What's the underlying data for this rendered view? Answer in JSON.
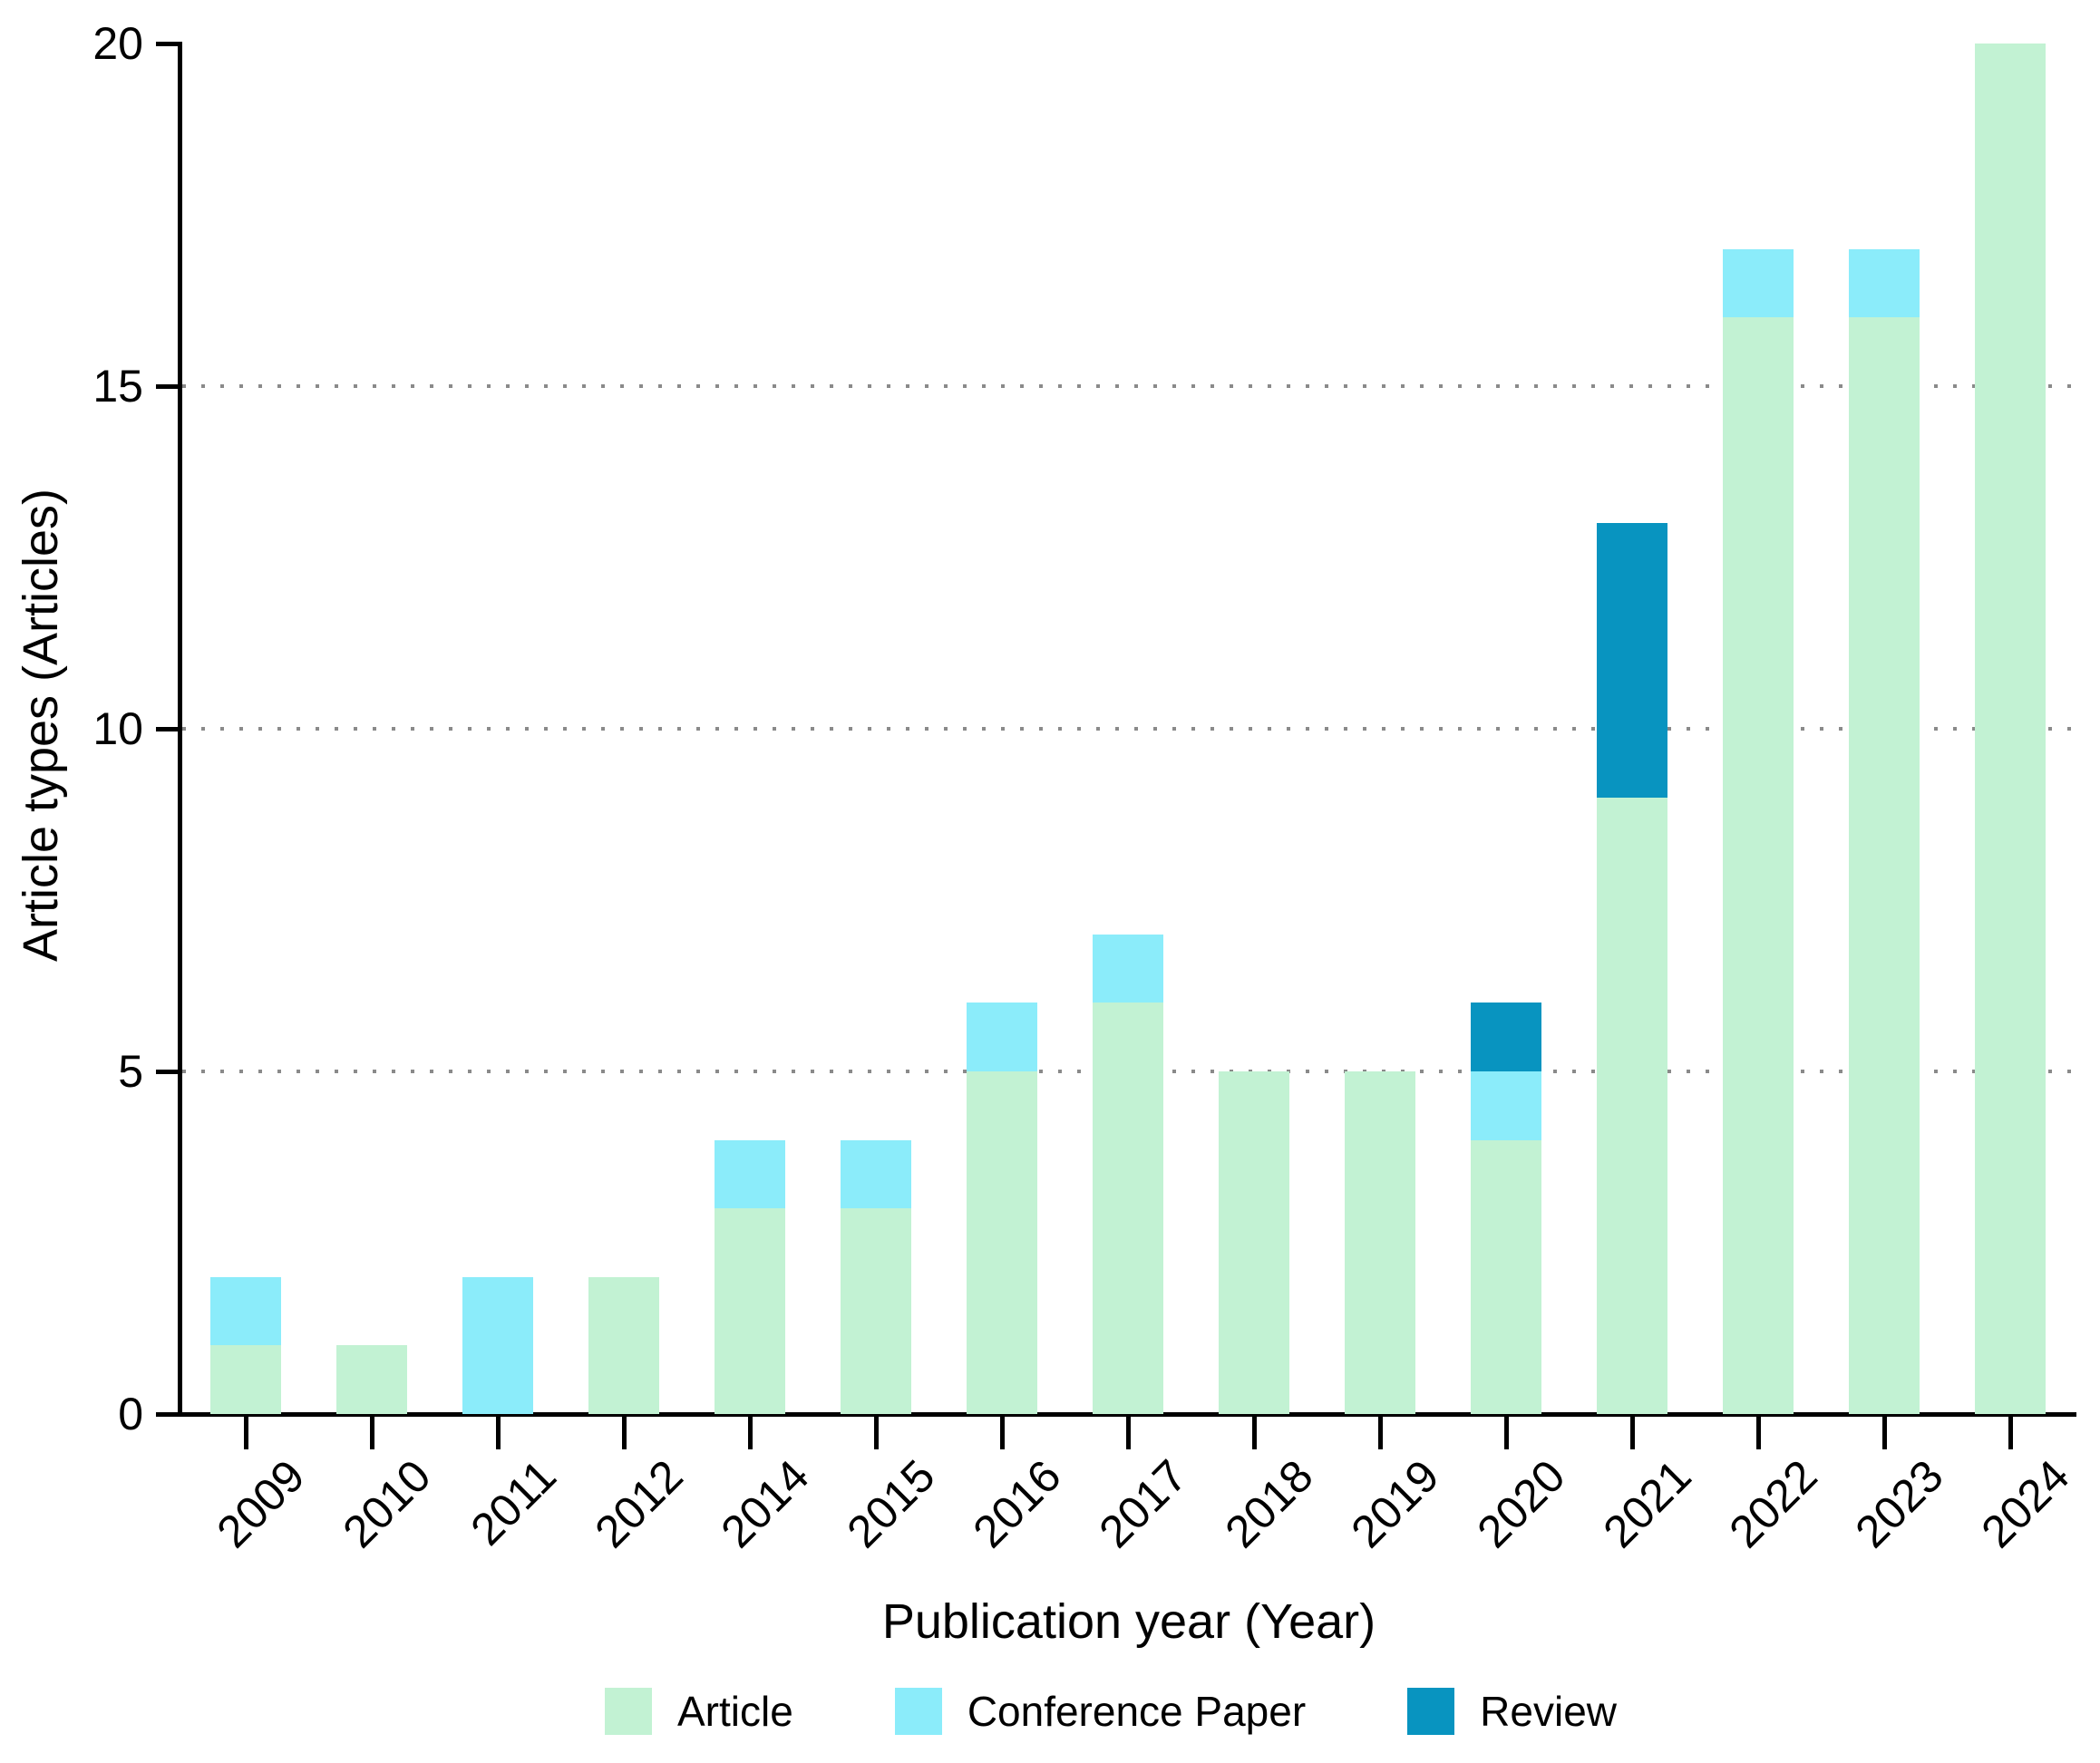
{
  "axes": {
    "y_title": "Article types (Articles)",
    "x_title": "Publication year (Year)",
    "y_ticks": [
      0,
      5,
      10,
      15,
      20
    ]
  },
  "legend": [
    {
      "label": "Article",
      "color": "#c2f2d3"
    },
    {
      "label": "Conference Paper",
      "color": "#8becfa"
    },
    {
      "label": "Review",
      "color": "#0894c0"
    }
  ],
  "chart_data": {
    "type": "bar",
    "stacked": true,
    "title": "",
    "xlabel": "Publication year (Year)",
    "ylabel": "Article types (Articles)",
    "categories": [
      "2009",
      "2010",
      "2011",
      "2012",
      "2014",
      "2015",
      "2016",
      "2017",
      "2018",
      "2019",
      "2020",
      "2021",
      "2022",
      "2023",
      "2024"
    ],
    "series": [
      {
        "name": "Article",
        "color": "#c2f2d3",
        "values": [
          1,
          1,
          0,
          2,
          3,
          3,
          5,
          6,
          5,
          5,
          4,
          9,
          16,
          16,
          20
        ]
      },
      {
        "name": "Conference Paper",
        "color": "#8becfa",
        "values": [
          1,
          0,
          2,
          0,
          1,
          1,
          1,
          1,
          0,
          0,
          1,
          0,
          1,
          1,
          0
        ]
      },
      {
        "name": "Review",
        "color": "#0894c0",
        "values": [
          0,
          0,
          0,
          0,
          0,
          0,
          0,
          0,
          0,
          0,
          1,
          4,
          0,
          0,
          0
        ]
      }
    ],
    "totals": [
      2,
      1,
      2,
      2,
      4,
      4,
      6,
      7,
      5,
      5,
      6,
      13,
      17,
      17,
      20
    ],
    "ylim": [
      0,
      20
    ],
    "gridlines_at": [
      5,
      10,
      15
    ],
    "grid_style": "dotted",
    "legend_position": "bottom"
  },
  "colors": {
    "axis": "#000000",
    "grid": "#8a8a8a",
    "background": "#ffffff"
  }
}
